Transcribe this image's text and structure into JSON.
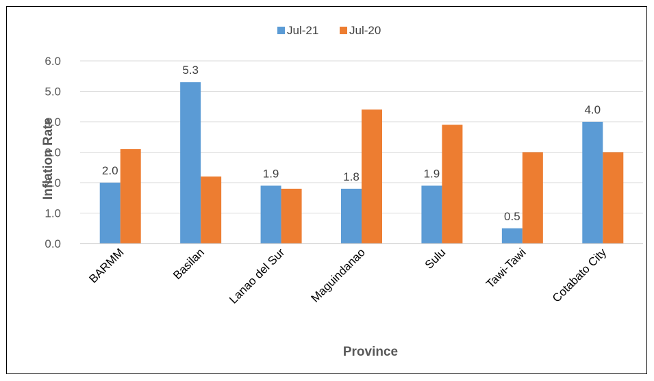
{
  "chart_data": {
    "type": "bar",
    "title": "",
    "xlabel": "Province",
    "ylabel": "Inflation Rate",
    "categories": [
      "BARMM",
      "Basilan",
      "Lanao del Sur",
      "Maguindanao",
      "Sulu",
      "Tawi-Tawi",
      "Cotabato City"
    ],
    "series": [
      {
        "name": "Jul-21",
        "color": "#5B9BD5",
        "values": [
          2.0,
          5.3,
          1.9,
          1.8,
          1.9,
          0.5,
          4.0
        ],
        "data_labels": [
          "2.0",
          "5.3",
          "1.9",
          "1.8",
          "1.9",
          "0.5",
          "4.0"
        ]
      },
      {
        "name": "Jul-20",
        "color": "#ED7D31",
        "values": [
          3.1,
          2.2,
          1.8,
          4.4,
          3.9,
          3.0,
          3.0
        ]
      }
    ],
    "ylim": [
      0,
      6
    ],
    "yticks": [
      "0.0",
      "1.0",
      "2.0",
      "3.0",
      "4.0",
      "5.0",
      "6.0"
    ],
    "grid": "horizontal",
    "legend_position": "top"
  }
}
